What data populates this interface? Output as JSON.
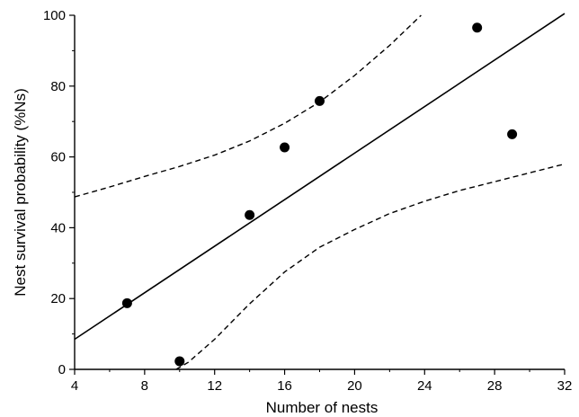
{
  "chart_data": {
    "type": "scatter",
    "title": "",
    "xlabel": "Number of nests",
    "ylabel": "Nest survival probability (%Ns)",
    "xlim": [
      4,
      32
    ],
    "ylim": [
      0,
      100
    ],
    "xticks": [
      4,
      8,
      12,
      16,
      20,
      24,
      28,
      32
    ],
    "yticks": [
      0,
      20,
      40,
      60,
      80,
      100
    ],
    "points": [
      {
        "x": 7,
        "y": 18.7
      },
      {
        "x": 10,
        "y": 2.3
      },
      {
        "x": 14,
        "y": 43.6
      },
      {
        "x": 16,
        "y": 62.7
      },
      {
        "x": 18,
        "y": 75.8
      },
      {
        "x": 27,
        "y": 96.5
      },
      {
        "x": 29,
        "y": 66.4
      }
    ],
    "regression_line": {
      "x": [
        4,
        32
      ],
      "y": [
        8.5,
        100.5
      ]
    },
    "confidence_upper": {
      "x": [
        4,
        6,
        8,
        10,
        12,
        14,
        16,
        18,
        20,
        22,
        23.8
      ],
      "y": [
        48.7,
        51.5,
        54.5,
        57.3,
        60.5,
        64.5,
        69.5,
        75.5,
        83,
        91.5,
        100
      ]
    },
    "confidence_lower": {
      "x": [
        9.8,
        10.5,
        12,
        14,
        16,
        18,
        20,
        22,
        24,
        26,
        28,
        30,
        32
      ],
      "y": [
        0,
        2,
        8.5,
        18.5,
        27.5,
        34.5,
        39.5,
        44,
        47.5,
        50.5,
        53,
        55.5,
        58
      ]
    },
    "grid": false,
    "legend": "none"
  }
}
